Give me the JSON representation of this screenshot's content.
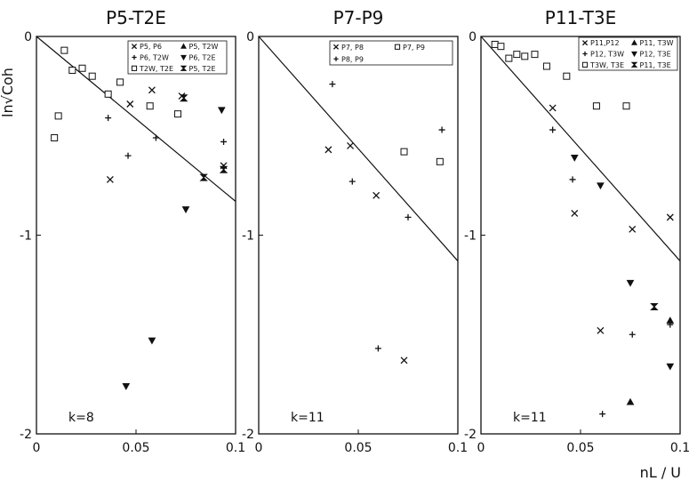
{
  "chart_data": [
    {
      "type": "scatter",
      "title": "P5-T2E",
      "k_label": "k=8",
      "xlim": [
        0,
        0.1
      ],
      "ylim": [
        -2,
        0
      ],
      "x_ticks": [
        "0",
        "0.05",
        "0.1"
      ],
      "y_ticks": [
        "0",
        "-1",
        "-2"
      ],
      "line": {
        "x": [
          0,
          0.1
        ],
        "y": [
          0,
          -0.83
        ]
      },
      "series": [
        {
          "name": "P5, P6",
          "marker": "x",
          "points": [
            [
              0.037,
              -0.72
            ],
            [
              0.047,
              -0.34
            ],
            [
              0.058,
              -0.27
            ],
            [
              0.073,
              -0.3
            ],
            [
              0.094,
              -0.65
            ]
          ]
        },
        {
          "name": "P6, T2W",
          "marker": "plus",
          "points": [
            [
              0.036,
              -0.41
            ],
            [
              0.046,
              -0.6
            ],
            [
              0.06,
              -0.51
            ],
            [
              0.094,
              -0.53
            ],
            [
              0.094,
              -0.66
            ]
          ]
        },
        {
          "name": "T2W, T2E",
          "marker": "square",
          "points": [
            [
              0.009,
              -0.51
            ],
            [
              0.011,
              -0.4
            ],
            [
              0.014,
              -0.07
            ],
            [
              0.018,
              -0.17
            ],
            [
              0.023,
              -0.16
            ],
            [
              0.028,
              -0.2
            ],
            [
              0.036,
              -0.29
            ],
            [
              0.042,
              -0.23
            ],
            [
              0.057,
              -0.35
            ],
            [
              0.071,
              -0.39
            ]
          ]
        },
        {
          "name": "P5, T2W",
          "marker": "triangle-up",
          "points": []
        },
        {
          "name": "P6, T2E",
          "marker": "triangle-down",
          "points": [
            [
              0.045,
              -1.76
            ],
            [
              0.058,
              -1.53
            ],
            [
              0.075,
              -0.87
            ],
            [
              0.093,
              -0.37
            ]
          ]
        },
        {
          "name": "P5, T2E",
          "marker": "hourglass",
          "points": [
            [
              0.074,
              -0.31
            ],
            [
              0.084,
              -0.71
            ],
            [
              0.094,
              -0.67
            ]
          ]
        }
      ]
    },
    {
      "type": "scatter",
      "title": "P7-P9",
      "k_label": "k=11",
      "xlim": [
        0,
        0.1
      ],
      "ylim": [
        -2,
        0
      ],
      "x_ticks": [
        "0",
        "0.05",
        "0.1"
      ],
      "y_ticks": [
        "0",
        "-1",
        "-2"
      ],
      "line": {
        "x": [
          0,
          0.1
        ],
        "y": [
          0,
          -1.13
        ]
      },
      "series": [
        {
          "name": "P7, P8",
          "marker": "x",
          "points": [
            [
              0.035,
              -0.57
            ],
            [
              0.046,
              -0.55
            ],
            [
              0.059,
              -0.8
            ],
            [
              0.073,
              -1.63
            ]
          ]
        },
        {
          "name": "P7, P9",
          "marker": "square",
          "points": [
            [
              0.073,
              -0.58
            ],
            [
              0.091,
              -0.63
            ]
          ]
        },
        {
          "name": "P8, P9",
          "marker": "plus",
          "points": [
            [
              0.037,
              -0.24
            ],
            [
              0.047,
              -0.73
            ],
            [
              0.06,
              -1.57
            ],
            [
              0.075,
              -0.91
            ],
            [
              0.092,
              -0.47
            ]
          ]
        }
      ]
    },
    {
      "type": "scatter",
      "title": "P11-T3E",
      "k_label": "k=11",
      "xlim": [
        0,
        0.1
      ],
      "ylim": [
        -2,
        0
      ],
      "x_ticks": [
        "0",
        "0.05",
        "0.1"
      ],
      "y_ticks": [
        "0",
        "-1",
        "-2"
      ],
      "line": {
        "x": [
          0,
          0.1
        ],
        "y": [
          0,
          -1.13
        ]
      },
      "series": [
        {
          "name": "P11,P12",
          "marker": "x",
          "points": [
            [
              0.036,
              -0.36
            ],
            [
              0.047,
              -0.89
            ],
            [
              0.06,
              -1.48
            ],
            [
              0.076,
              -0.97
            ],
            [
              0.095,
              -0.91
            ]
          ]
        },
        {
          "name": "P12, T3W",
          "marker": "plus",
          "points": [
            [
              0.036,
              -0.47
            ],
            [
              0.046,
              -0.72
            ],
            [
              0.061,
              -1.9
            ],
            [
              0.076,
              -1.5
            ],
            [
              0.095,
              -1.45
            ]
          ]
        },
        {
          "name": "T3W, T3E",
          "marker": "square",
          "points": [
            [
              0.007,
              -0.04
            ],
            [
              0.01,
              -0.05
            ],
            [
              0.014,
              -0.11
            ],
            [
              0.018,
              -0.09
            ],
            [
              0.022,
              -0.1
            ],
            [
              0.027,
              -0.09
            ],
            [
              0.033,
              -0.15
            ],
            [
              0.043,
              -0.2
            ],
            [
              0.058,
              -0.35
            ],
            [
              0.073,
              -0.35
            ]
          ]
        },
        {
          "name": "P11, T3W",
          "marker": "triangle-up",
          "points": [
            [
              0.075,
              -1.84
            ],
            [
              0.095,
              -1.43
            ]
          ]
        },
        {
          "name": "P12, T3E",
          "marker": "triangle-down",
          "points": [
            [
              0.047,
              -0.61
            ],
            [
              0.06,
              -0.75
            ],
            [
              0.075,
              -1.24
            ],
            [
              0.095,
              -1.66
            ]
          ]
        },
        {
          "name": "P11, T3E",
          "marker": "hourglass",
          "points": [
            [
              0.087,
              -1.36
            ]
          ]
        }
      ]
    }
  ],
  "y_axis_label": "ln√Coh",
  "x_axis_label": "nL / U",
  "colors": {
    "ink": "#111111",
    "background": "#ffffff"
  }
}
